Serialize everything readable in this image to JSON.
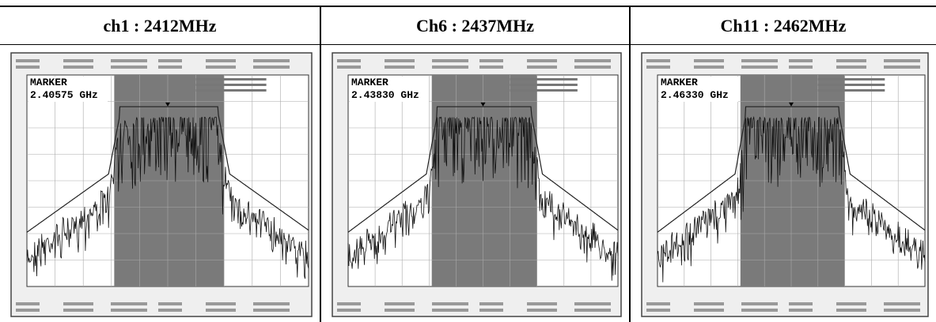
{
  "table": {
    "headers": [
      "ch1 : 2412MHz",
      "Ch6 : 2437MHz",
      "Ch11 : 2462MHz"
    ],
    "cells": [
      {
        "marker_label": "MARKER",
        "marker_value": "2.40575 GHz"
      },
      {
        "marker_label": "MARKER",
        "marker_value": "2.43830 GHz"
      },
      {
        "marker_label": "MARKER",
        "marker_value": "2.46330 GHz"
      }
    ]
  }
}
